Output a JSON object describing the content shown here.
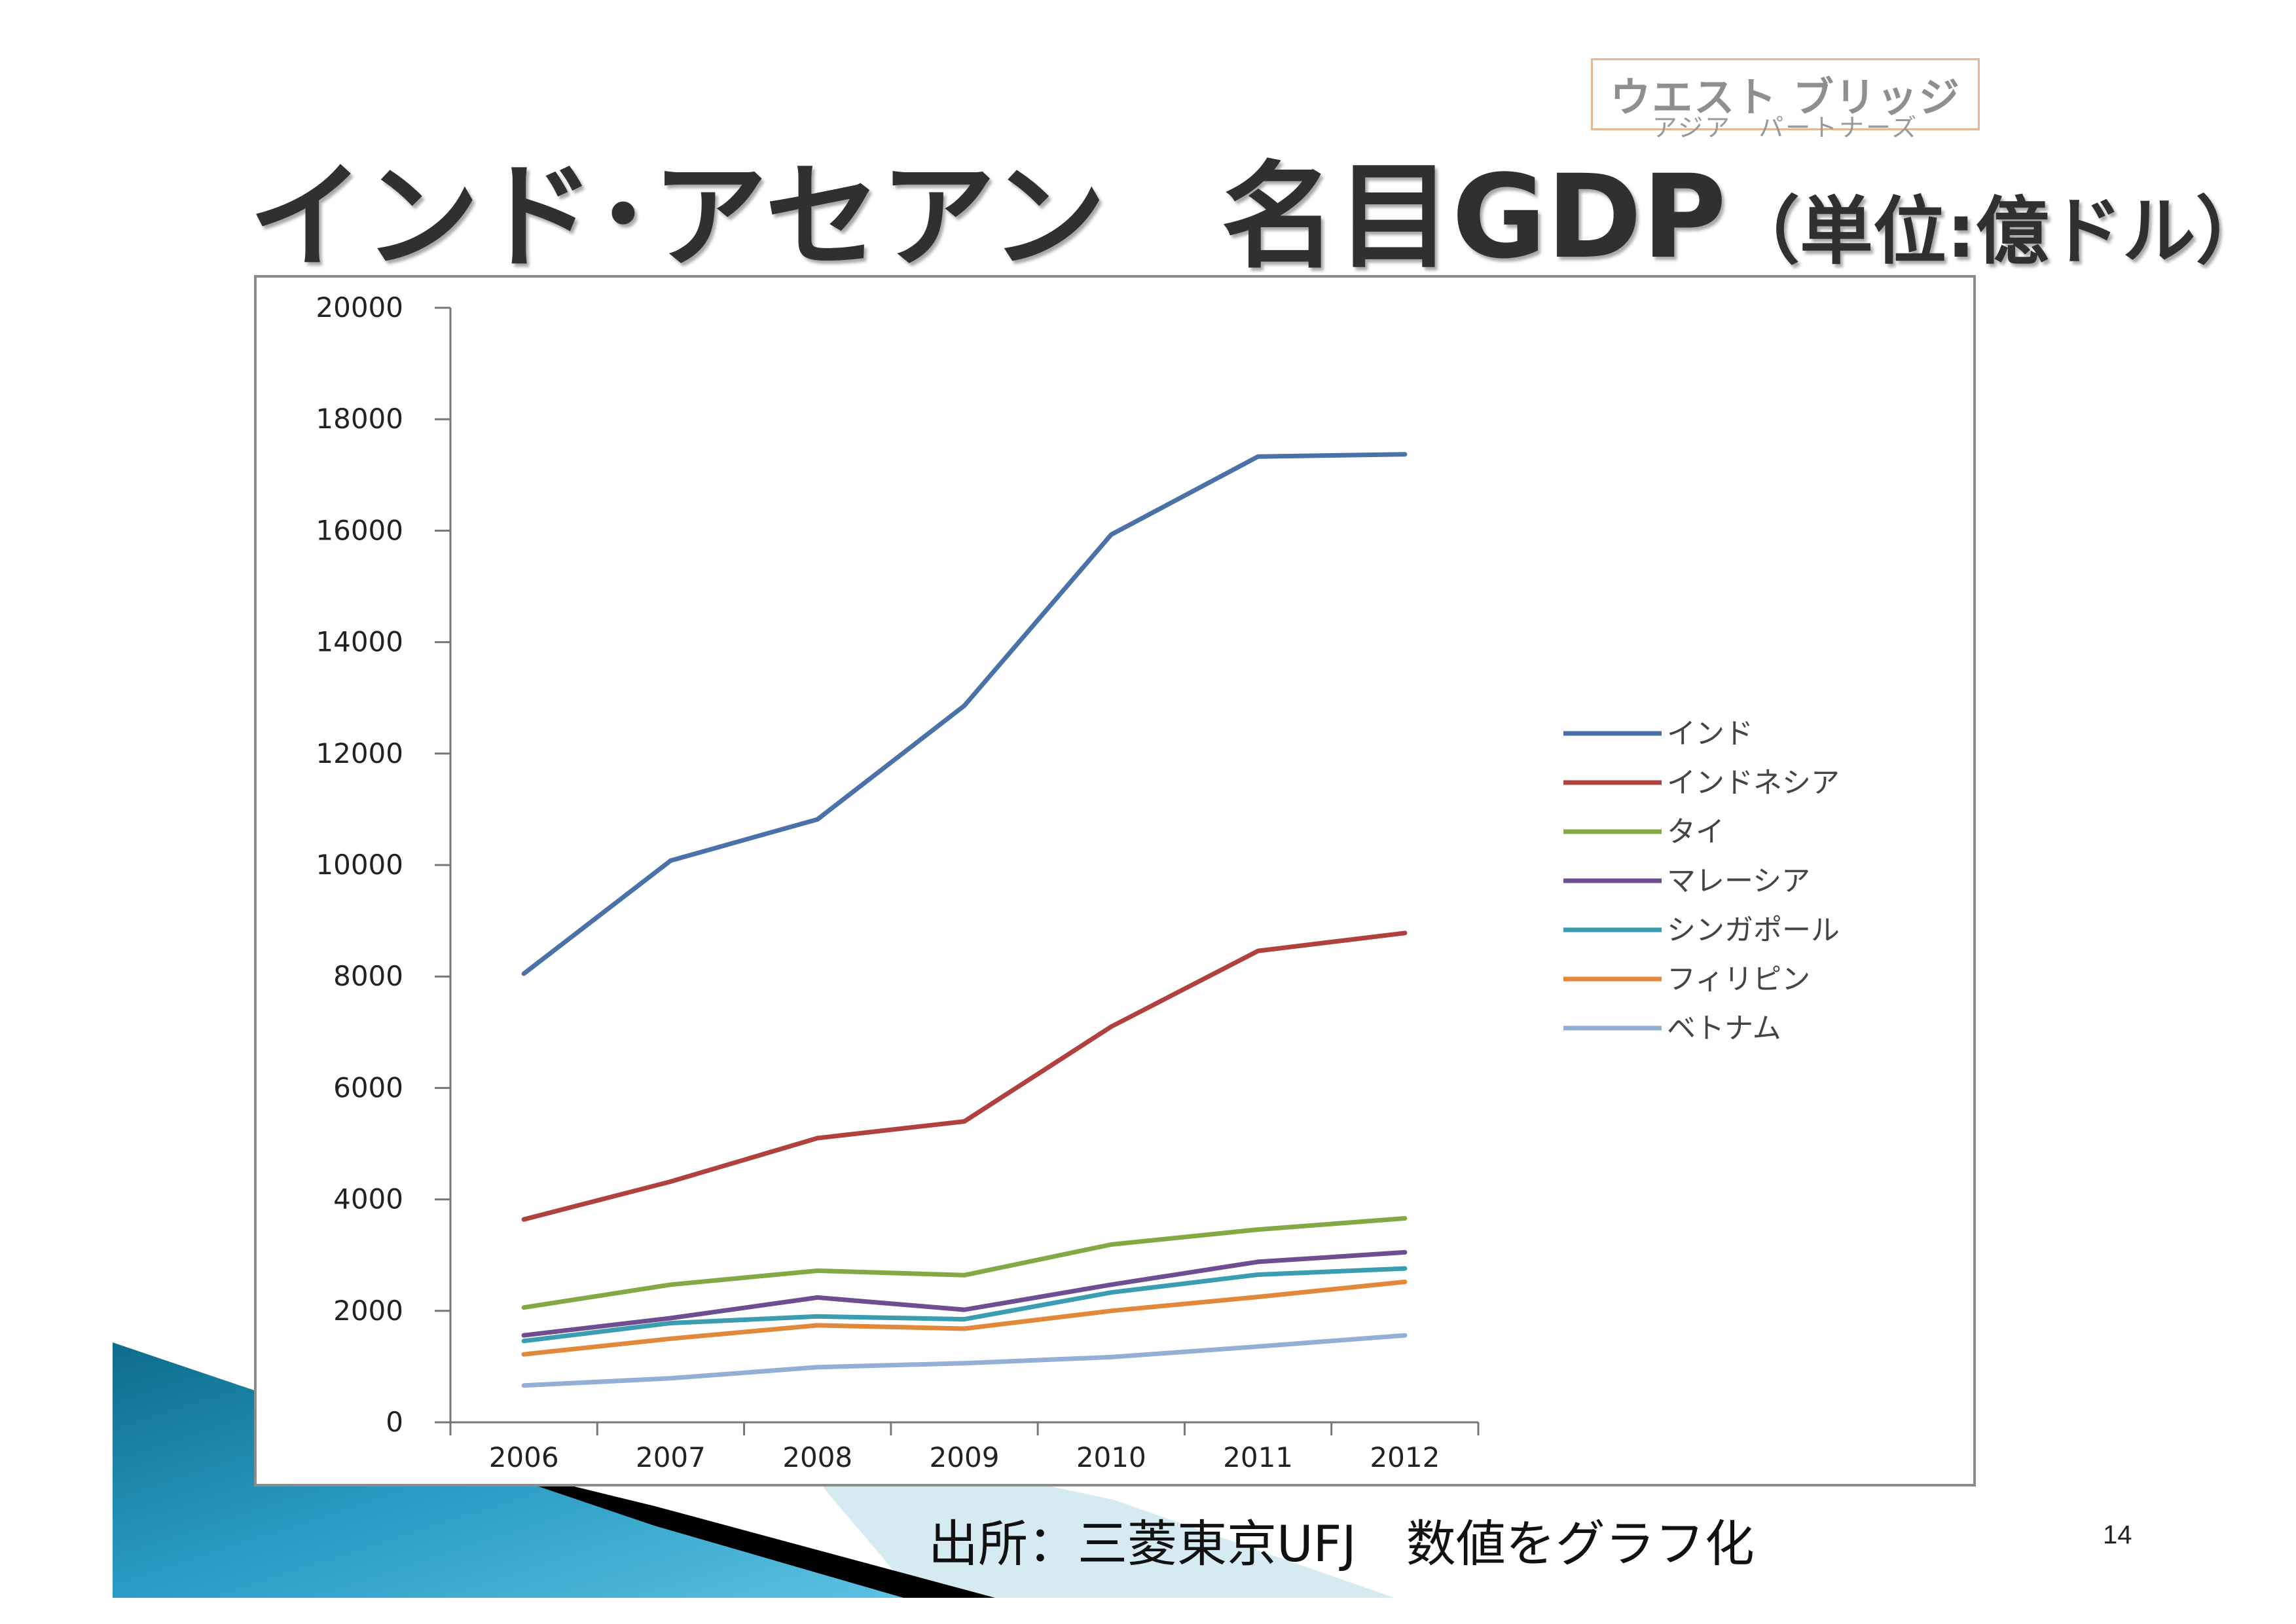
{
  "logo": {
    "main": "ウエスト ブリッジ",
    "sub": "アジア　パートナーズ"
  },
  "title": {
    "main": "インド･アセアン　名目GDP",
    "unit": "（単位:億ドル）"
  },
  "source": "出所：三菱東京UFJ　数値をグラフ化",
  "page_number": "14",
  "chart_data": {
    "type": "line",
    "categories": [
      "2006",
      "2007",
      "2008",
      "2009",
      "2010",
      "2011",
      "2012"
    ],
    "ylim": [
      0,
      20000
    ],
    "yticks": [
      "0",
      "2000",
      "4000",
      "6000",
      "8000",
      "10000",
      "12000",
      "14000",
      "16000",
      "18000",
      "20000"
    ],
    "legend_position": "right",
    "series": [
      {
        "name": "インド",
        "color": "#4a72a8",
        "values": [
          8050,
          10080,
          10820,
          12860,
          15930,
          17330,
          17370
        ]
      },
      {
        "name": "インドネシア",
        "color": "#b0413e",
        "values": [
          3640,
          4320,
          5100,
          5400,
          7100,
          8460,
          8780
        ]
      },
      {
        "name": "タイ",
        "color": "#84a843",
        "values": [
          2060,
          2470,
          2720,
          2640,
          3190,
          3460,
          3660
        ]
      },
      {
        "name": "マレーシア",
        "color": "#6e4d91",
        "values": [
          1560,
          1870,
          2240,
          2020,
          2470,
          2880,
          3050
        ]
      },
      {
        "name": "シンガポール",
        "color": "#3a9db1",
        "values": [
          1460,
          1780,
          1900,
          1850,
          2330,
          2650,
          2760
        ]
      },
      {
        "name": "フィリピン",
        "color": "#e2883a",
        "values": [
          1220,
          1500,
          1740,
          1680,
          2000,
          2250,
          2520
        ]
      },
      {
        "name": "ベトナム",
        "color": "#95aed6",
        "values": [
          660,
          790,
          990,
          1060,
          1170,
          1360,
          1560
        ]
      }
    ]
  }
}
